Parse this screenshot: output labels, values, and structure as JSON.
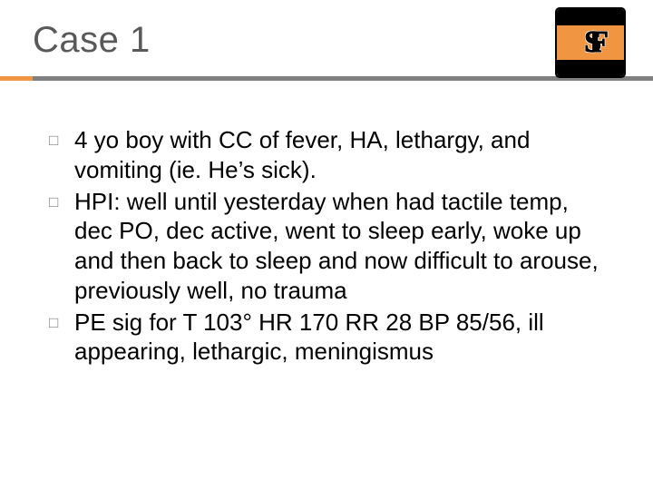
{
  "title": "Case 1",
  "accent_color": "#f09542",
  "rule_color": "#808080",
  "title_color": "#595959",
  "logo_bg": "#f09542",
  "logo_text": "SF",
  "bullets": [
    {
      "text": "4 yo boy with CC of fever, HA, lethargy, and vomiting (ie. He’s sick)."
    },
    {
      "text": "HPI: well until yesterday when had tactile temp, dec PO, dec active, went to sleep early, woke up and then back to sleep and now difficult to arouse, previously well, no trauma"
    },
    {
      "text": "PE sig for T 103° HR 170 RR 28 BP 85/56, ill appearing, lethargic, meningismus"
    }
  ]
}
